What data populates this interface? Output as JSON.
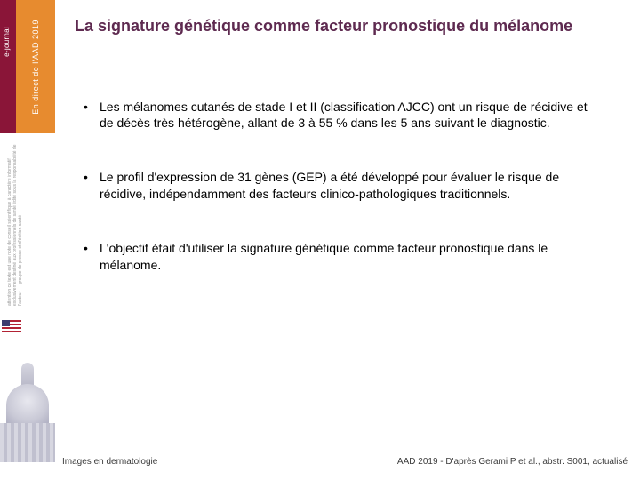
{
  "sidebar": {
    "badge": {
      "journal_label": "e-journal",
      "event_label": "En direct de l'AAD 2019"
    },
    "disclaimer": "attention ce texte est une note de conseil scientifique à caractère informatif exclusivement destiné aux professionnels de santé édité sous la responsabilité de l'auteur — groupe de presse et d'édition santé"
  },
  "title": "La signature génétique comme facteur pronostique du mélanome",
  "bullets": [
    "Les mélanomes cutanés de stade I et II (classification AJCC) ont un risque de récidive et de décès très hétérogène, allant de 3 à 55 % dans les 5 ans suivant le diagnostic.",
    " Le profil d'expression de 31 gènes (GEP) a été développé pour évaluer le risque de récidive, indépendamment des facteurs clinico-pathologiques traditionnels.",
    "L'objectif était d'utiliser la signature génétique comme facteur pronostique dans le mélanome."
  ],
  "footer": {
    "left": "Images en dermatologie",
    "right": "AAD 2019 - D'après Gerami P et al., abstr. S001, actualisé"
  },
  "colors": {
    "title": "#5e2a50",
    "badge_left": "#8a1538",
    "badge_right": "#e78b2f",
    "text": "#000000"
  }
}
